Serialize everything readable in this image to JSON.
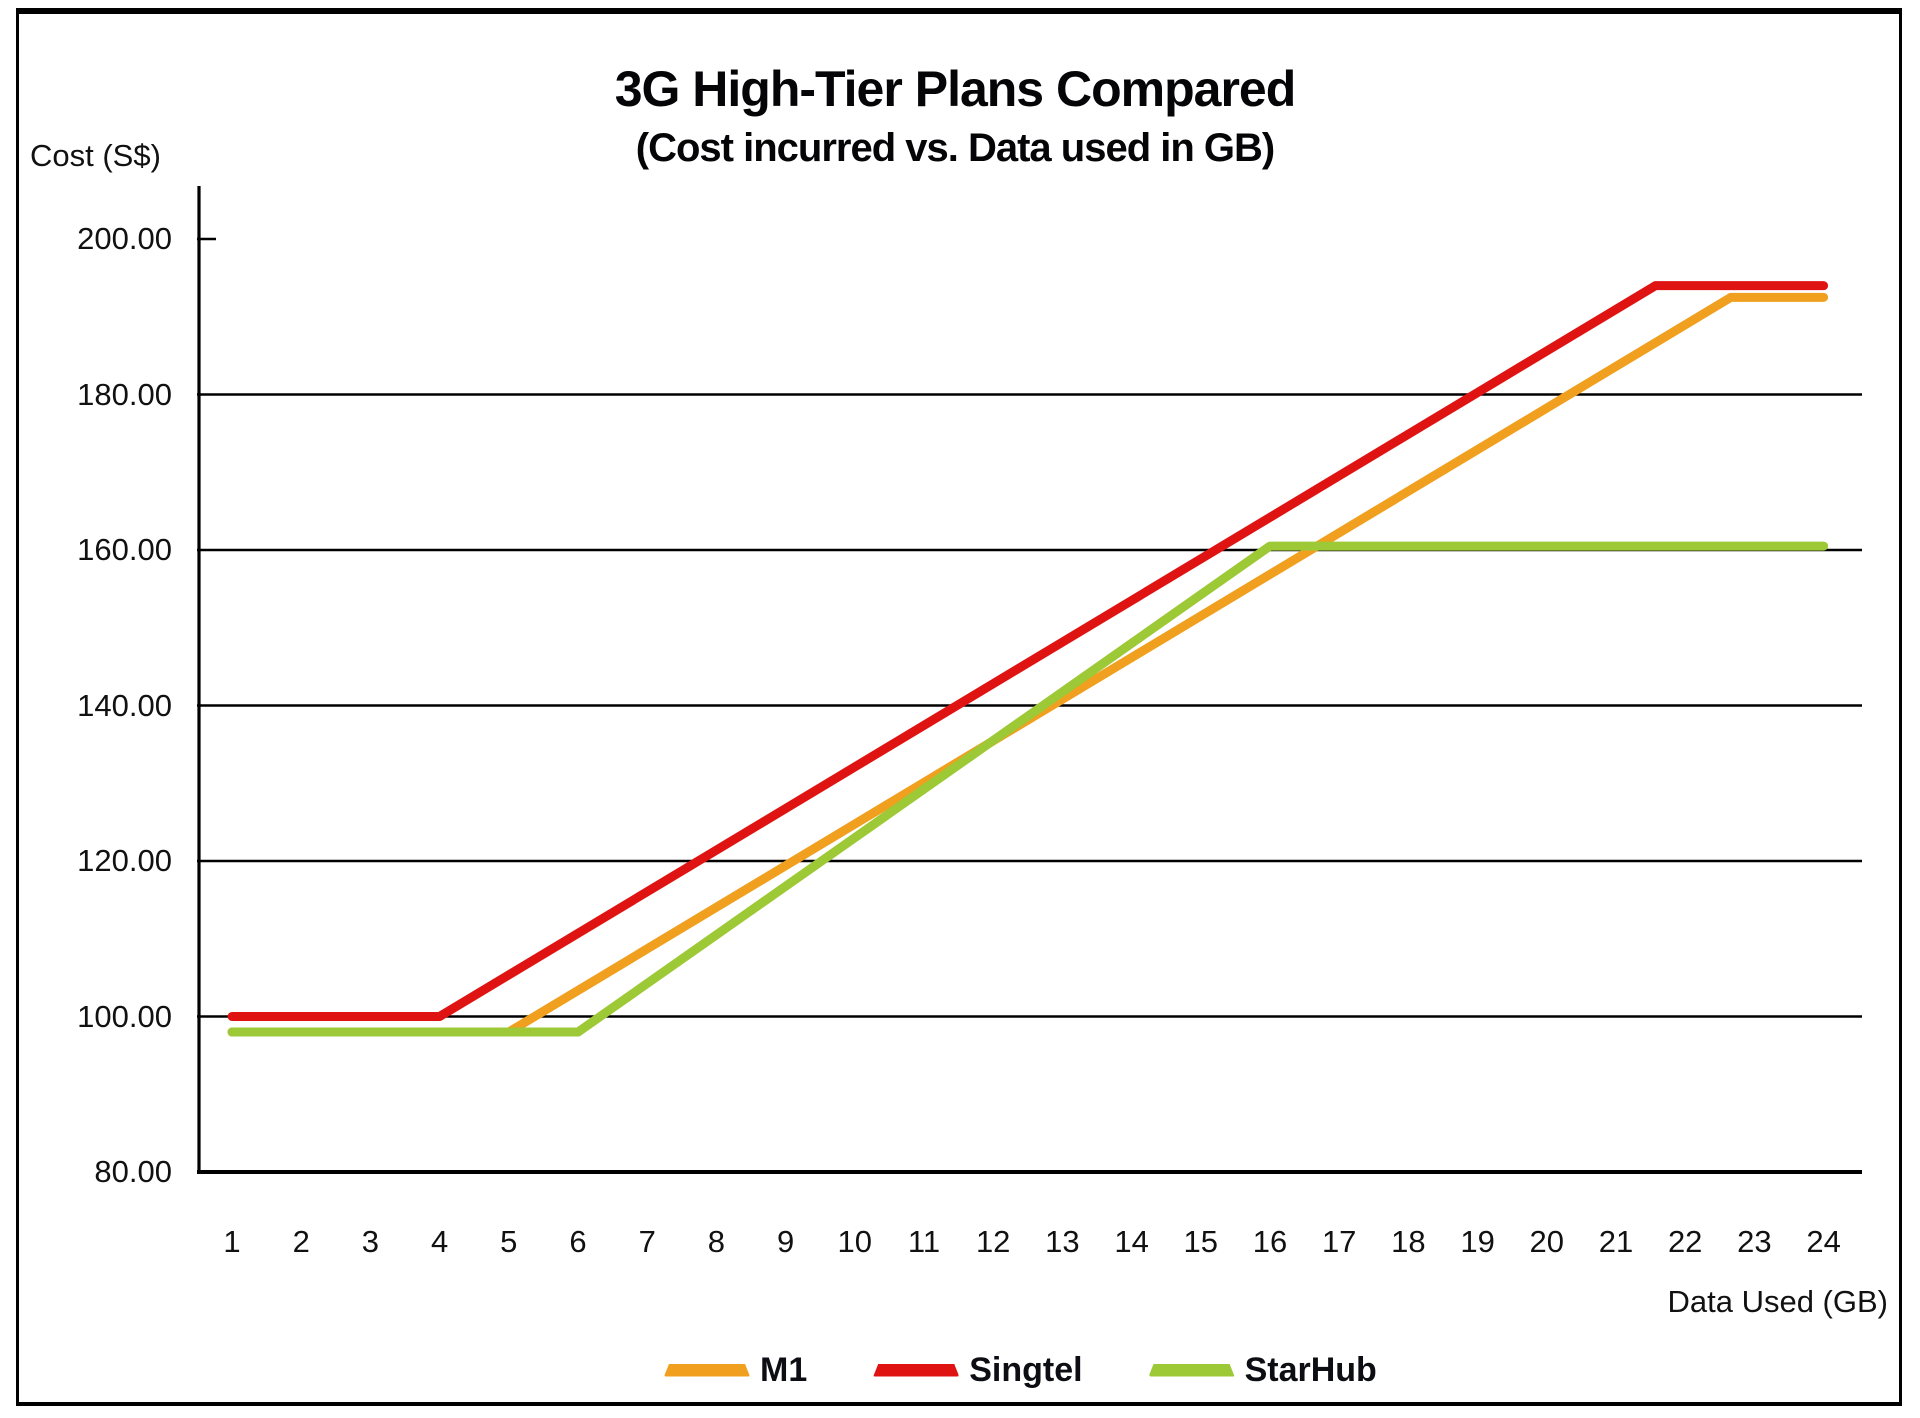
{
  "chart": {
    "title": "3G High-Tier Plans Compared",
    "subtitle": "(Cost incurred vs. Data used in GB)",
    "y_axis": {
      "title": "Cost (S$)",
      "min": 80,
      "max": 200,
      "tick_step": 20,
      "ticks": [
        {
          "value": 200,
          "label": "200.00"
        },
        {
          "value": 180,
          "label": "180.00"
        },
        {
          "value": 160,
          "label": "160.00"
        },
        {
          "value": 140,
          "label": "140.00"
        },
        {
          "value": 120,
          "label": "120.00"
        },
        {
          "value": 100,
          "label": "100.00"
        },
        {
          "value": 80,
          "label": "80.00"
        }
      ],
      "gridline_values": [
        180,
        160,
        140,
        120,
        100
      ]
    },
    "x_axis": {
      "title": "Data Used (GB)",
      "tick_labels": [
        "1",
        "2",
        "3",
        "4",
        "5",
        "6",
        "7",
        "8",
        "9",
        "10",
        "11",
        "12",
        "13",
        "14",
        "15",
        "16",
        "17",
        "18",
        "19",
        "20",
        "21",
        "22",
        "23",
        "24"
      ]
    }
  },
  "legend": {
    "items": [
      {
        "label": "M1",
        "color": "#f0a01e"
      },
      {
        "label": "Singtel",
        "color": "#e01313"
      },
      {
        "label": "StarHub",
        "color": "#9cc935"
      }
    ]
  },
  "chart_data": {
    "type": "line",
    "title": "3G High-Tier Plans Compared",
    "subtitle": "(Cost incurred vs. Data used in GB)",
    "xlabel": "Data Used (GB)",
    "ylabel": "Cost (S$)",
    "x": [
      1,
      2,
      3,
      4,
      5,
      6,
      7,
      8,
      9,
      10,
      11,
      12,
      13,
      14,
      15,
      16,
      17,
      18,
      19,
      20,
      21,
      22,
      23,
      24
    ],
    "xlim": [
      1,
      24
    ],
    "ylim": [
      80,
      200
    ],
    "grid": "horizontal-only",
    "legend_position": "bottom",
    "series": [
      {
        "name": "M1",
        "color": "#f0a01e",
        "base_cost": 98.0,
        "flat_until_gb": 5,
        "cap_cost": 192.5,
        "breakpoints": [
          [
            1,
            98
          ],
          [
            5,
            98
          ],
          [
            22.66,
            192.5
          ],
          [
            24,
            192.5
          ]
        ],
        "values": [
          98,
          98,
          98,
          98,
          98,
          103.35,
          108.7,
          114.05,
          119.4,
          124.75,
          130.1,
          135.45,
          140.8,
          146.15,
          151.5,
          156.85,
          162.2,
          167.55,
          172.9,
          178.25,
          183.6,
          188.95,
          192.5,
          192.5
        ]
      },
      {
        "name": "Singtel",
        "color": "#e01313",
        "base_cost": 100.0,
        "flat_until_gb": 4,
        "cap_cost": 194.0,
        "breakpoints": [
          [
            1,
            100
          ],
          [
            4,
            100
          ],
          [
            21.57,
            194
          ],
          [
            24,
            194
          ]
        ],
        "values": [
          100,
          100,
          100,
          100,
          105.35,
          110.7,
          116.05,
          121.4,
          126.75,
          132.1,
          137.45,
          142.8,
          148.15,
          153.5,
          158.85,
          164.2,
          169.55,
          174.9,
          180.25,
          185.6,
          190.95,
          194,
          194,
          194
        ]
      },
      {
        "name": "StarHub",
        "color": "#9cc935",
        "base_cost": 98.0,
        "flat_until_gb": 6,
        "cap_cost": 160.5,
        "breakpoints": [
          [
            1,
            98
          ],
          [
            6,
            98
          ],
          [
            16,
            160.5
          ],
          [
            24,
            160.5
          ]
        ],
        "values": [
          98,
          98,
          98,
          98,
          98,
          98,
          104.25,
          110.5,
          116.75,
          123,
          129.25,
          135.5,
          141.75,
          148,
          154.25,
          160.5,
          160.5,
          160.5,
          160.5,
          160.5,
          160.5,
          160.5,
          160.5,
          160.5
        ]
      }
    ]
  }
}
